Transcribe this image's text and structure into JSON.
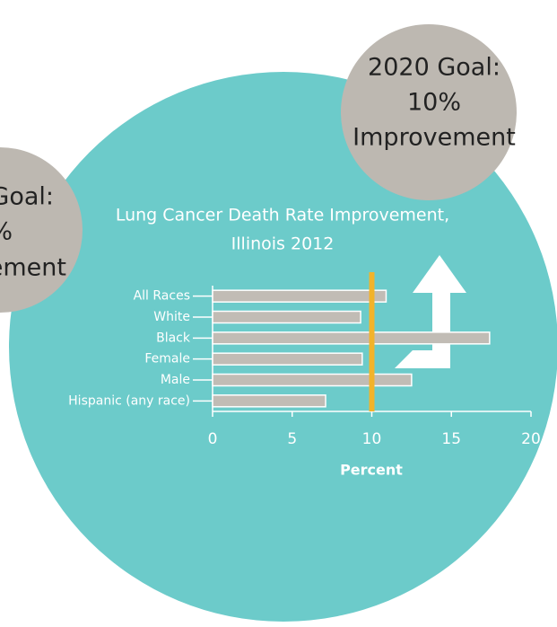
{
  "chart_data": {
    "type": "bar",
    "orientation": "horizontal",
    "title": "Lung Cancer Death Rate Improvement,",
    "subtitle": "Illinois 2012",
    "xlabel": "Percent",
    "categories": [
      "All Races",
      "White",
      "Black",
      "Female",
      "Male",
      "Hispanic (any race)"
    ],
    "values": [
      10.9,
      9.3,
      17.4,
      9.4,
      12.5,
      7.1
    ],
    "color": "#c1bcb5",
    "goal_line": 10,
    "goal_color": "#f2b32a",
    "xlim": [
      0,
      20
    ],
    "xticks": [
      0,
      5,
      10,
      15,
      20
    ],
    "grid": false
  },
  "goal_bubble": {
    "lines": [
      "2020 Goal:",
      "10%",
      "Improvement"
    ]
  },
  "left_bubble": {
    "lines": [
      "Goal:",
      "%",
      "ement"
    ]
  }
}
